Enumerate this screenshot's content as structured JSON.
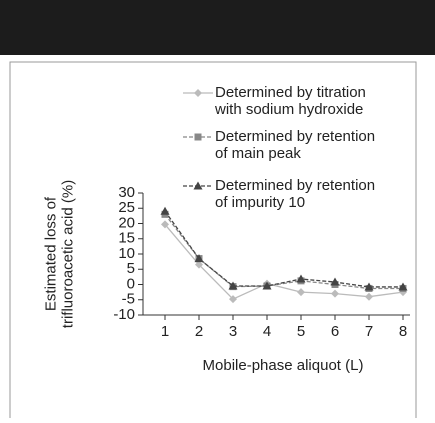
{
  "chart_data": {
    "type": "line",
    "y_label": "Estimated loss of trifluoroacetic acid (%)",
    "x_label": "Mobile-phase aliquot (L)",
    "categories": [
      "1",
      "2",
      "3",
      "4",
      "5",
      "6",
      "7",
      "8"
    ],
    "series": [
      {
        "name": "Determined by titration with sodium hydroxide",
        "color": "#bbbbbb",
        "marker": "diamond",
        "dashed": false,
        "values": [
          19.7,
          6.5,
          -4.8,
          0.3,
          -2.5,
          -3,
          -4,
          -2.5
        ]
      },
      {
        "name": "Determined by retention of main peak",
        "color": "#888888",
        "marker": "square",
        "dashed": true,
        "values": [
          23,
          8.5,
          -0.7,
          -0.5,
          1.2,
          0,
          -1.3,
          -1.3
        ]
      },
      {
        "name": "Determined by retention of impurity 10",
        "color": "#444444",
        "marker": "triangle",
        "dashed": true,
        "values": [
          24,
          8.5,
          -0.5,
          -0.5,
          1.8,
          0.8,
          -0.8,
          -0.8
        ]
      }
    ],
    "ylim": [
      -10,
      30
    ],
    "yticks": [
      -10,
      -5,
      0,
      5,
      10,
      15,
      20,
      25,
      30
    ],
    "grid": false
  }
}
